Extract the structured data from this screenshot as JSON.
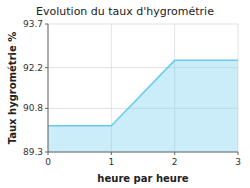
{
  "chart_data": {
    "type": "area",
    "title": "Evolution du taux d'hygrométrie",
    "xlabel": "heure par heure",
    "ylabel": "Taux hygrométrie %",
    "x": [
      0,
      1,
      2,
      3
    ],
    "values": [
      90.2,
      90.2,
      92.45,
      92.45
    ],
    "color": "#66ccee",
    "xlim": [
      0,
      3
    ],
    "ylim": [
      89.3,
      93.7
    ],
    "xticks": [
      0,
      1,
      2,
      3
    ],
    "yticks": [
      89.3,
      90.8,
      92.2,
      93.7
    ],
    "grid": true
  }
}
